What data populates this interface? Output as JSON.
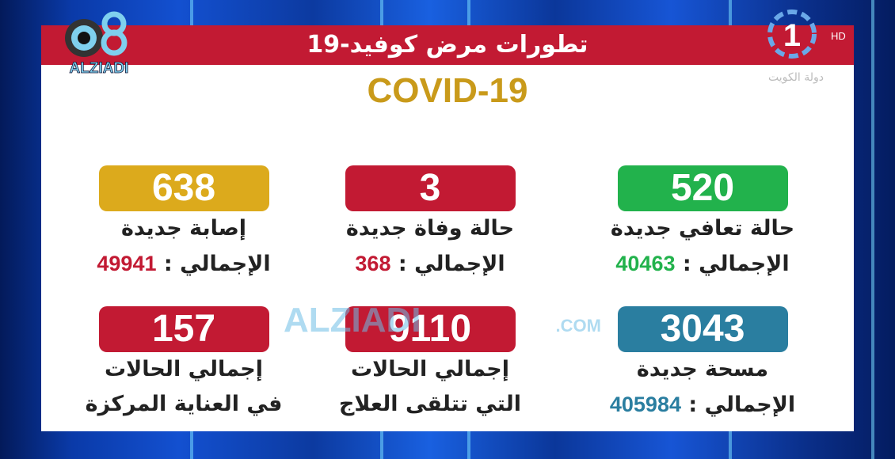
{
  "header": {
    "title": "تطورات مرض كوفيد-19",
    "subtitle": "COVID-19"
  },
  "logos": {
    "left": "Q8 ALZIADI",
    "right_channel": "1",
    "right_hd": "HD",
    "right_caption": "دولة الكويت",
    "watermark": "ALZIADI Q8 .COM"
  },
  "cards": [
    {
      "value": "520",
      "line1": "حالة تعافي جديدة",
      "total_label": "الإجمالي :",
      "total": "40463",
      "color": "#22b24c",
      "total_color": "#22b24c"
    },
    {
      "value": "3",
      "line1": "حالة وفاة جديدة",
      "total_label": "الإجمالي :",
      "total": "368",
      "color": "#c21a33",
      "total_color": "#c21a33"
    },
    {
      "value": "638",
      "line1": "إصابة جديدة",
      "total_label": "الإجمالي :",
      "total": "49941",
      "color": "#dcaa1c",
      "total_color": "#c21a33"
    },
    {
      "value": "3043",
      "line1": "مسحة جديدة",
      "total_label": "الإجمالي :",
      "total": "405984",
      "color": "#2a7ea0",
      "total_color": "#2a7ea0"
    },
    {
      "value": "9110",
      "line1": "إجمالي الحالات",
      "line2": "التي تتلقى العلاج",
      "color": "#c21a33"
    },
    {
      "value": "157",
      "line1": "إجمالي الحالات",
      "line2": "في العناية المركزة",
      "color": "#c21a33"
    }
  ]
}
